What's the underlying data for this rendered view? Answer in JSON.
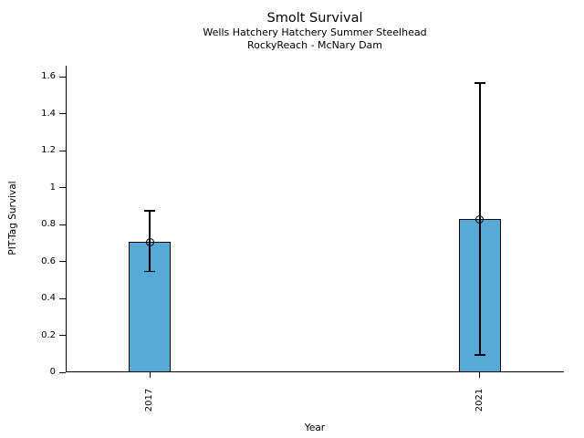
{
  "header": {
    "title": "Smolt Survival",
    "subtitle1": "Wells Hatchery Hatchery Summer Steelhead",
    "subtitle2": "RockyReach - McNary Dam"
  },
  "chart_data": {
    "type": "bar",
    "title": "Smolt Survival",
    "subtitle1": "Wells Hatchery Hatchery Summer Steelhead",
    "subtitle2": "RockyReach - McNary Dam",
    "categories": [
      "2017",
      "2021"
    ],
    "series": [
      {
        "name": "PIT-Tag Survival",
        "values": [
          0.705,
          0.83
        ],
        "error_low": [
          0.545,
          0.095
        ],
        "error_high": [
          0.875,
          1.565
        ]
      }
    ],
    "xlabel": "Year",
    "ylabel": "PIT-Tag Survival",
    "ytick_labels": [
      "0",
      "0.2",
      "0.4",
      "0.6",
      "0.8",
      "1",
      "1.2",
      "1.4",
      "1.6"
    ],
    "ytick_values": [
      0,
      0.2,
      0.4,
      0.6,
      0.8,
      1.0,
      1.2,
      1.4,
      1.6
    ],
    "ylim": [
      0,
      1.66
    ],
    "grid": false,
    "legend_position": "none",
    "bar_color": "#57a9d6",
    "edge_color": "#000000",
    "error_color": "#000000"
  }
}
